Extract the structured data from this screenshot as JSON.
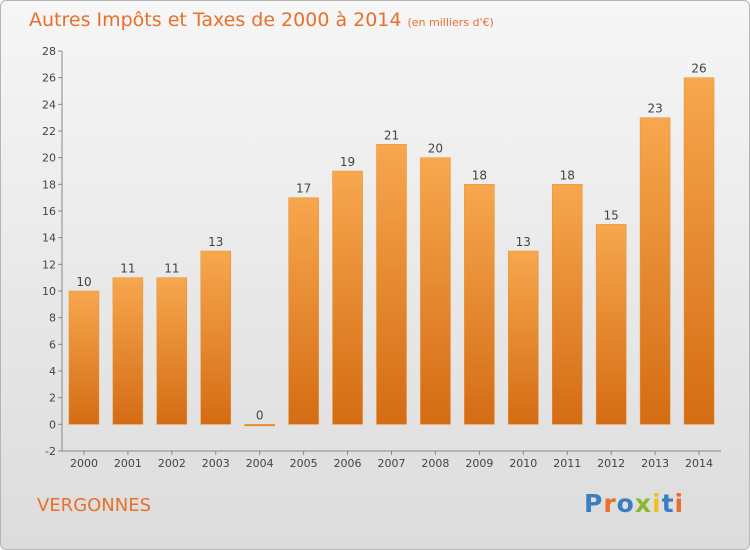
{
  "title": "Autres Impôts et Taxes de 2000 à 2014",
  "subtitle": "(en milliers d'€)",
  "commune": "VERGONNES",
  "logo": {
    "text": "Proxiti",
    "letter_colors": [
      "#3a7fc1",
      "#e8702a",
      "#3a7fc1",
      "#8ab82d",
      "#e8c323",
      "#3a7fc1",
      "#e8702a"
    ]
  },
  "colors": {
    "bar_light": "#f7a74e",
    "bar_dark": "#d46c14",
    "title": "#e8702a",
    "label": "#444444"
  },
  "chart_data": {
    "type": "bar",
    "title": "Autres Impôts et Taxes de 2000 à 2014",
    "categories": [
      "2000",
      "2001",
      "2002",
      "2003",
      "2004",
      "2005",
      "2006",
      "2007",
      "2008",
      "2009",
      "2010",
      "2011",
      "2012",
      "2013",
      "2014"
    ],
    "values": [
      10,
      11,
      11,
      13,
      0,
      17,
      19,
      21,
      20,
      18,
      13,
      18,
      15,
      23,
      26
    ],
    "ylim": [
      -2,
      28
    ],
    "yticks": [
      -2,
      0,
      2,
      4,
      6,
      8,
      10,
      12,
      14,
      16,
      18,
      20,
      22,
      24,
      26,
      28
    ],
    "grid": false,
    "legend": "none"
  }
}
